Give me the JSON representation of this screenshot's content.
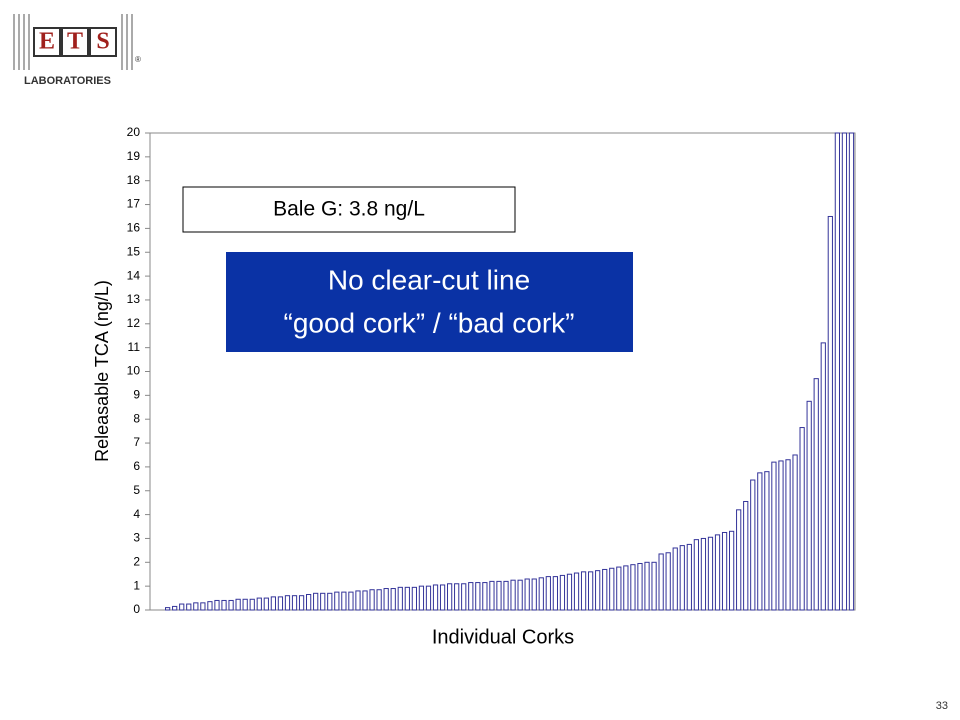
{
  "logo": {
    "letters": [
      "E",
      "T",
      "S"
    ],
    "name": "LABORATORIES",
    "mark": "®"
  },
  "page_number": "33",
  "chart_data": {
    "type": "bar",
    "y_label": "Releasable TCA (ng/L)",
    "x_label": "Individual Corks",
    "annotations": [
      {
        "text": "Bale G: 3.8 ng/L"
      },
      {
        "lines": [
          "No clear-cut line",
          "“good cork” / “bad cork”"
        ]
      }
    ],
    "categories": [
      null,
      null,
      null,
      null,
      null,
      null,
      null,
      null,
      null,
      null,
      null,
      null,
      null,
      null,
      null,
      null,
      null,
      null,
      null,
      null,
      null,
      null,
      null,
      null,
      null,
      null,
      null,
      null,
      null,
      null,
      null,
      null,
      null,
      null,
      null,
      null,
      null,
      null,
      null,
      null,
      null,
      null,
      null,
      null,
      null,
      null,
      null,
      null,
      null,
      null,
      null,
      null,
      null,
      null,
      null,
      null,
      null,
      null,
      null,
      null,
      null,
      null,
      null,
      null,
      null,
      null,
      null,
      null,
      null,
      null,
      null,
      null,
      null,
      null,
      null,
      null,
      null,
      null,
      null,
      null,
      null,
      null,
      null,
      null,
      null,
      null,
      null,
      null,
      null,
      null,
      null,
      null,
      null,
      null,
      null,
      null,
      null,
      null,
      null,
      null
    ],
    "values": [
      0,
      0,
      0.1,
      0.15,
      0.25,
      0.25,
      0.3,
      0.3,
      0.35,
      0.4,
      0.4,
      0.4,
      0.45,
      0.45,
      0.45,
      0.5,
      0.5,
      0.55,
      0.55,
      0.6,
      0.6,
      0.6,
      0.65,
      0.7,
      0.7,
      0.7,
      0.75,
      0.75,
      0.75,
      0.8,
      0.8,
      0.85,
      0.85,
      0.9,
      0.9,
      0.95,
      0.95,
      0.95,
      1.0,
      1.0,
      1.05,
      1.05,
      1.1,
      1.1,
      1.1,
      1.15,
      1.15,
      1.15,
      1.2,
      1.2,
      1.2,
      1.25,
      1.25,
      1.3,
      1.3,
      1.35,
      1.4,
      1.4,
      1.45,
      1.5,
      1.55,
      1.6,
      1.6,
      1.65,
      1.7,
      1.75,
      1.8,
      1.85,
      1.9,
      1.95,
      2.0,
      2.0,
      2.35,
      2.4,
      2.6,
      2.7,
      2.75,
      2.95,
      3.0,
      3.05,
      3.15,
      3.25,
      3.3,
      4.2,
      4.55,
      5.45,
      5.75,
      5.8,
      6.2,
      6.25,
      6.3,
      6.5,
      7.65,
      8.75,
      9.7,
      11.2,
      16.5,
      20,
      20,
      20
    ],
    "color": "#333399",
    "ylim": [
      0,
      20
    ],
    "yticks": [
      0,
      1,
      2,
      3,
      4,
      5,
      6,
      7,
      8,
      9,
      10,
      11,
      12,
      13,
      14,
      15,
      16,
      17,
      18,
      19,
      20
    ],
    "grid": false
  }
}
